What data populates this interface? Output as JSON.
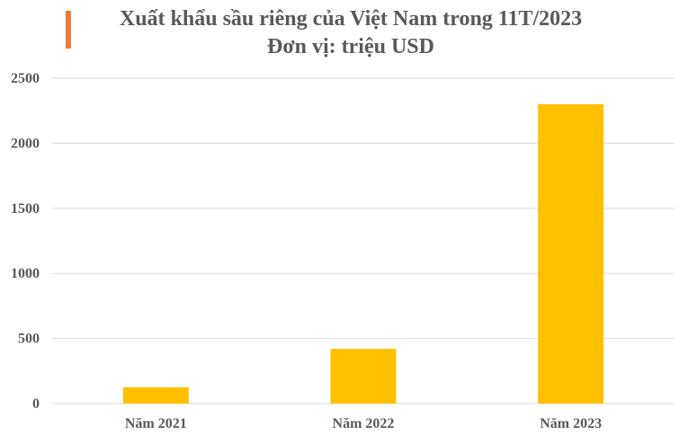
{
  "header": {
    "title_line1": "Xuất khẩu sầu riêng của Việt Nam trong 11T/2023",
    "title_line2": "Đơn vị: triệu USD"
  },
  "colors": {
    "bar": "#FFC000",
    "accent": "#ED7D31",
    "grid": "#D9D9D9",
    "text": "#595959"
  },
  "chart_data": {
    "type": "bar",
    "title": "Xuất khẩu sầu riêng của Việt Nam trong 11T/2023",
    "subtitle": "Đơn vị: triệu USD",
    "categories": [
      "Năm 2021",
      "Năm 2022",
      "Năm 2023"
    ],
    "values": [
      125,
      420,
      2300
    ],
    "ylim": [
      0,
      2500
    ],
    "yticks": [
      0,
      500,
      1000,
      1500,
      2000,
      2500
    ],
    "grid": true,
    "legend": "none"
  }
}
